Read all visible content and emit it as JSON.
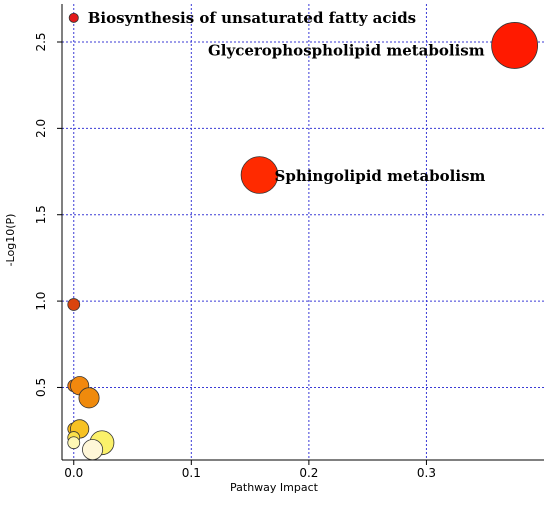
{
  "chart_data": {
    "type": "scatter",
    "title": "",
    "xlabel": "Pathway Impact",
    "ylabel": "-Log10(P)",
    "xlim": [
      -0.01,
      0.4
    ],
    "ylim": [
      0.08,
      2.72
    ],
    "x_ticks": [
      {
        "value": 0.0,
        "label": "0.0"
      },
      {
        "value": 0.1,
        "label": "0.1"
      },
      {
        "value": 0.2,
        "label": "0.2"
      },
      {
        "value": 0.3,
        "label": "0.3"
      }
    ],
    "y_ticks": [
      {
        "value": 0.5,
        "label": "0.5"
      },
      {
        "value": 1.0,
        "label": "1.0"
      },
      {
        "value": 1.5,
        "label": "1.5"
      },
      {
        "value": 2.0,
        "label": "2.0"
      },
      {
        "value": 2.5,
        "label": "2.5"
      }
    ],
    "grid": true,
    "grid_color": "#3b3bd6",
    "points": [
      {
        "x": 0.0,
        "y": 2.64,
        "impact_size": 1,
        "color": "#e31a1c",
        "label": "Biosynthesis of unsaturated fatty acids"
      },
      {
        "x": 0.375,
        "y": 2.48,
        "impact_size": 5,
        "color": "#ff1a00",
        "label": "Glycerophospholipid metabolism"
      },
      {
        "x": 0.158,
        "y": 1.73,
        "impact_size": 4,
        "color": "#ff2a00",
        "label": "Sphingolipid metabolism"
      },
      {
        "x": 0.0,
        "y": 0.98,
        "impact_size": 1.3,
        "color": "#d9440e",
        "label": ""
      },
      {
        "x": 0.0,
        "y": 0.51,
        "impact_size": 1.3,
        "color": "#f07a10",
        "label": ""
      },
      {
        "x": 0.005,
        "y": 0.51,
        "impact_size": 2,
        "color": "#f2880e",
        "label": ""
      },
      {
        "x": 0.013,
        "y": 0.44,
        "impact_size": 2.2,
        "color": "#ef8a0c",
        "label": ""
      },
      {
        "x": 0.0,
        "y": 0.26,
        "impact_size": 1.3,
        "color": "#f5b81a",
        "label": ""
      },
      {
        "x": 0.005,
        "y": 0.26,
        "impact_size": 2,
        "color": "#f7c223",
        "label": ""
      },
      {
        "x": 0.0,
        "y": 0.21,
        "impact_size": 1.3,
        "color": "#fae04a",
        "label": ""
      },
      {
        "x": 0.024,
        "y": 0.18,
        "impact_size": 2.6,
        "color": "#fbf16a",
        "label": ""
      },
      {
        "x": 0.0,
        "y": 0.18,
        "impact_size": 1.3,
        "color": "#fdf7b5",
        "label": ""
      },
      {
        "x": 0.016,
        "y": 0.14,
        "impact_size": 2.2,
        "color": "#fff7d8",
        "label": ""
      }
    ]
  }
}
